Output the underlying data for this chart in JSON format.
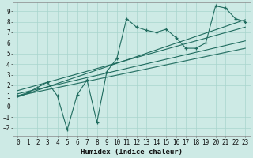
{
  "title": "",
  "xlabel": "Humidex (Indice chaleur)",
  "ylabel": "",
  "bg_color": "#cdeae5",
  "grid_color": "#a8d5ce",
  "line_color": "#1f6b5e",
  "xlim": [
    -0.5,
    23.5
  ],
  "ylim": [
    -2.8,
    9.8
  ],
  "xticks": [
    0,
    1,
    2,
    3,
    4,
    5,
    6,
    7,
    8,
    9,
    10,
    11,
    12,
    13,
    14,
    15,
    16,
    17,
    18,
    19,
    20,
    21,
    22,
    23
  ],
  "yticks": [
    -2,
    -1,
    0,
    1,
    2,
    3,
    4,
    5,
    6,
    7,
    8,
    9
  ],
  "data_x": [
    0,
    1,
    2,
    3,
    4,
    5,
    6,
    7,
    8,
    9,
    10,
    11,
    12,
    13,
    14,
    15,
    16,
    17,
    18,
    19,
    20,
    21,
    22,
    23
  ],
  "data_y": [
    1.0,
    1.3,
    1.8,
    2.3,
    1.0,
    -2.2,
    1.1,
    2.5,
    -1.5,
    3.3,
    4.5,
    8.3,
    7.5,
    7.2,
    7.0,
    7.3,
    6.5,
    5.5,
    5.5,
    6.0,
    9.5,
    9.3,
    8.3,
    8.0
  ],
  "trend1_x": [
    0,
    23
  ],
  "trend1_y": [
    0.9,
    8.2
  ],
  "trend2_x": [
    0,
    23
  ],
  "trend2_y": [
    1.2,
    6.2
  ],
  "trend3_x": [
    0,
    23
  ],
  "trend3_y": [
    1.0,
    5.5
  ],
  "trend4_x": [
    0,
    23
  ],
  "trend4_y": [
    1.5,
    7.5
  ]
}
